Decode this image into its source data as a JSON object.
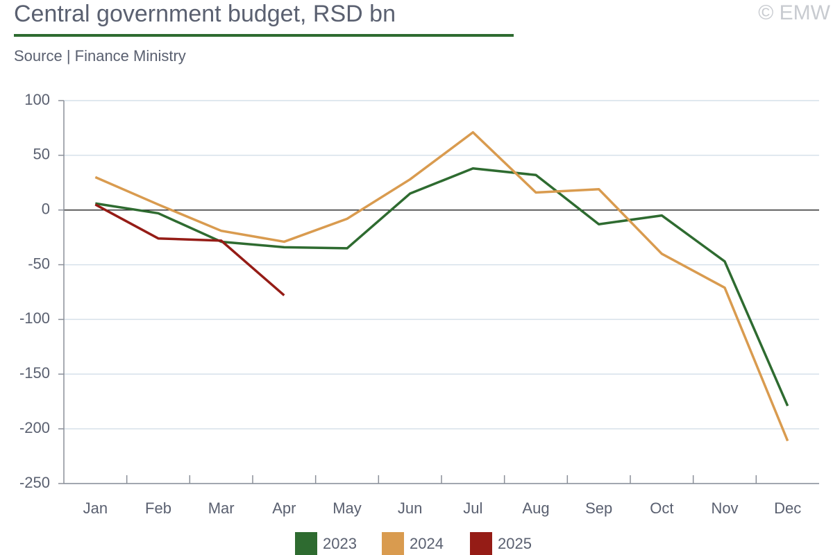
{
  "chart_data": {
    "type": "line",
    "title": "Central government budget, RSD bn",
    "subtitle": "Source | Finance Ministry",
    "credit": "© EMW",
    "categories": [
      "Jan",
      "Feb",
      "Mar",
      "Apr",
      "May",
      "Jun",
      "Jul",
      "Aug",
      "Sep",
      "Oct",
      "Nov",
      "Dec"
    ],
    "series": [
      {
        "name": "2023",
        "color": "#2e6b30",
        "values": [
          6,
          -3,
          -29,
          -34,
          -35,
          15,
          38,
          32,
          -13,
          -5,
          -47,
          -179
        ]
      },
      {
        "name": "2024",
        "color": "#d99b4f",
        "values": [
          30,
          5,
          -19,
          -29,
          -8,
          28,
          71,
          16,
          19,
          -40,
          -71,
          -211
        ]
      },
      {
        "name": "2025",
        "color": "#951c16",
        "values": [
          5,
          -26,
          -28,
          -78,
          null,
          null,
          null,
          null,
          null,
          null,
          null,
          null
        ]
      }
    ],
    "ylim": [
      -250,
      100
    ],
    "yticks": [
      -250,
      -200,
      -150,
      -100,
      -50,
      0,
      50,
      100
    ],
    "grid": true
  }
}
